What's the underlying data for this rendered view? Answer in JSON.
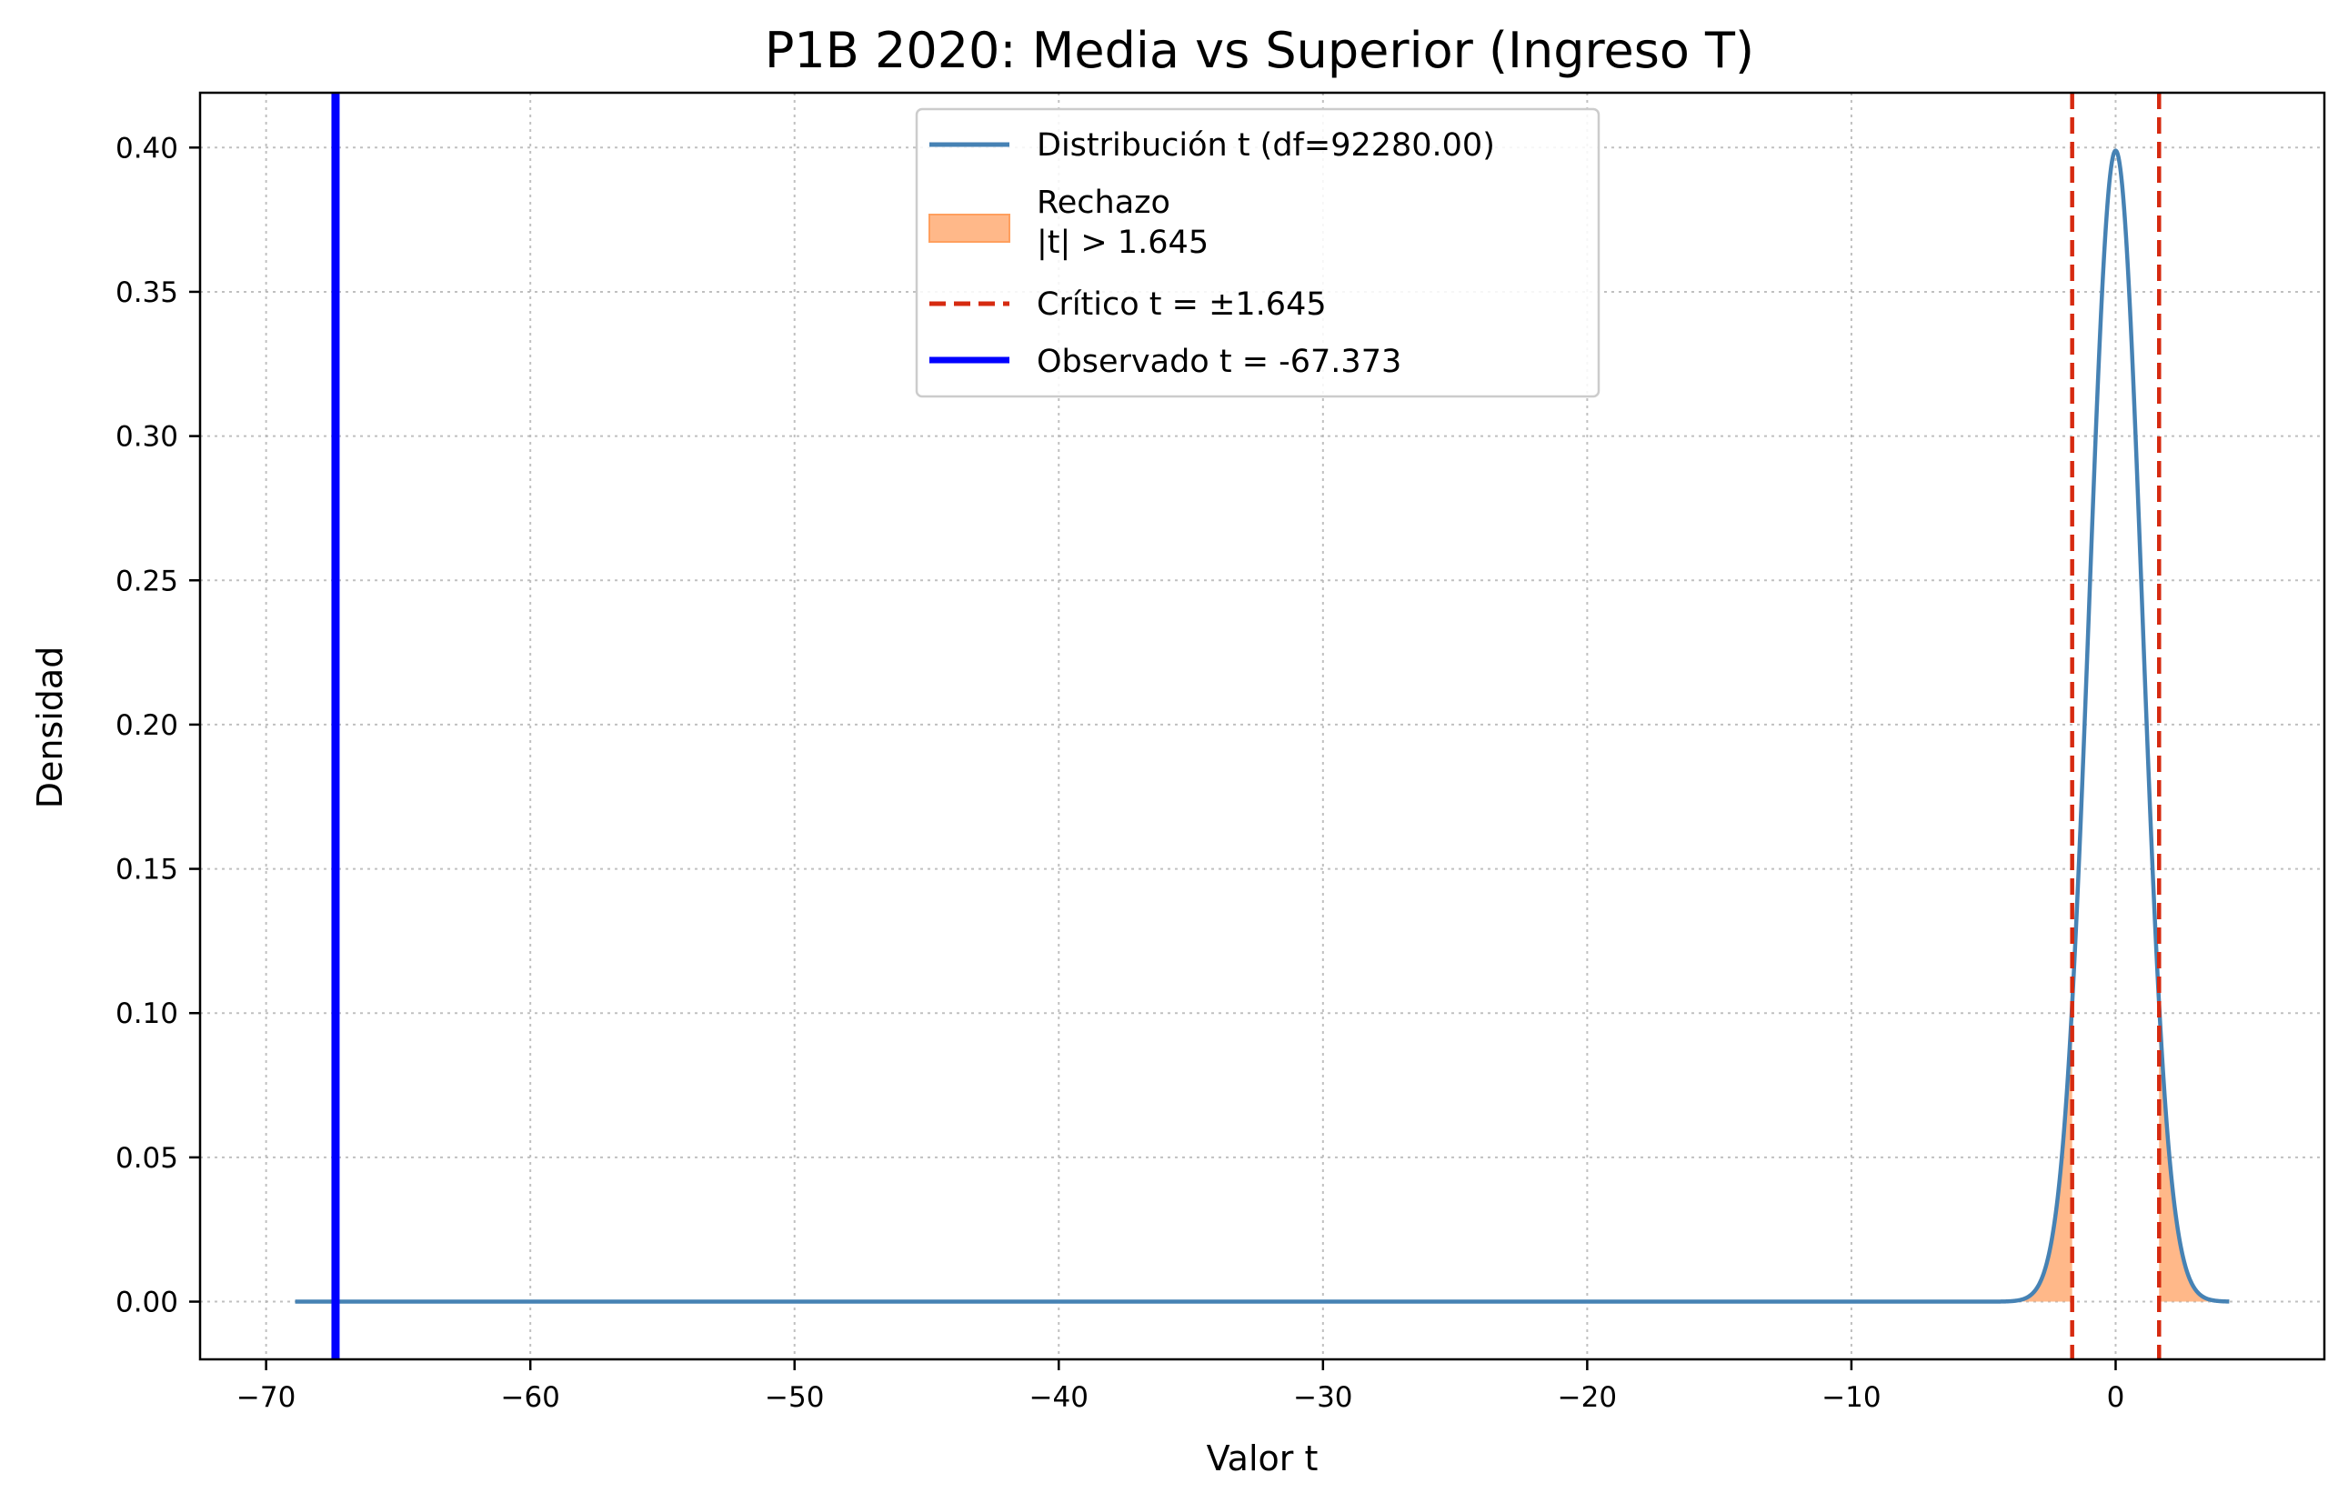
{
  "chart_data": {
    "type": "line",
    "title": "P1B 2020: Media vs Superior (Ingreso T)",
    "xlabel": "Valor t",
    "ylabel": "Densidad",
    "xlim": [
      -72.5,
      7.9
    ],
    "ylim": [
      -0.02,
      0.419
    ],
    "x_ticks": [
      -70,
      -60,
      -50,
      -40,
      -30,
      -20,
      -10,
      0
    ],
    "x_tick_labels": [
      "−70",
      "−60",
      "−50",
      "−40",
      "−30",
      "−20",
      "−10",
      "0"
    ],
    "y_ticks": [
      0.0,
      0.05,
      0.1,
      0.15,
      0.2,
      0.25,
      0.3,
      0.35,
      0.4
    ],
    "y_tick_labels": [
      "0.00",
      "0.05",
      "0.10",
      "0.15",
      "0.20",
      "0.25",
      "0.30",
      "0.35",
      "0.40"
    ],
    "grid": true,
    "legend_position": "upper center",
    "series": [
      {
        "name": "Distribución t (df=92280.00)",
        "kind": "density-curve",
        "df": 92280,
        "x_range": [
          -68.9,
          4.3
        ],
        "color": "#4682b4"
      },
      {
        "name": "Rechazo\n|t| > 1.645",
        "kind": "shaded-tails",
        "threshold": 1.645,
        "color": "#ffa66b"
      },
      {
        "name": "Crítico t = ±1.645",
        "kind": "vertical-dashed",
        "x": [
          -1.645,
          1.645
        ],
        "color": "#d62a10"
      },
      {
        "name": "Observado t = -67.373",
        "kind": "vertical-solid",
        "x": -67.373,
        "color": "#0000ff"
      }
    ]
  }
}
